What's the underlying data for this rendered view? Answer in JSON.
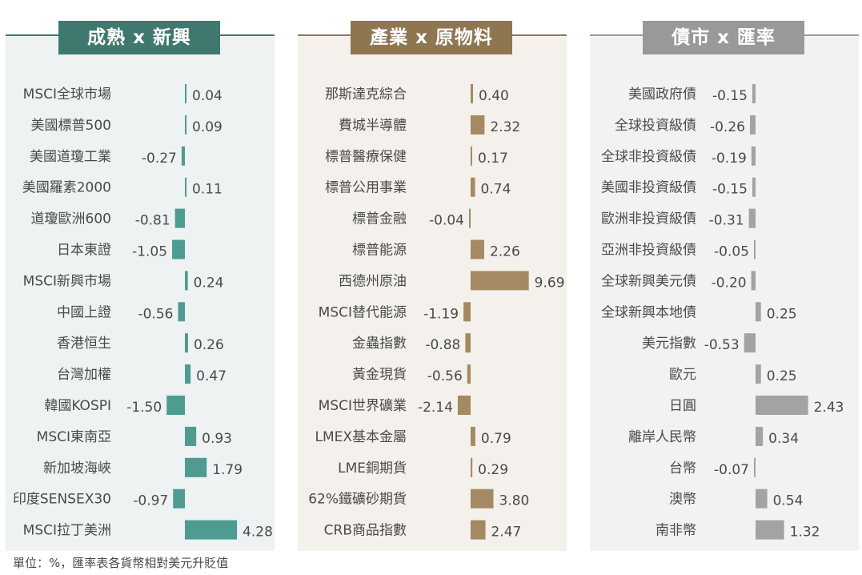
{
  "footnote": "單位：%，匯率表各貨幣相對美元升貶值",
  "chart_data": [
    {
      "type": "bar",
      "title": "成熟 x 新興",
      "orientation": "horizontal",
      "bar_color": "#4d9b91",
      "title_color": "#3f786f",
      "panel_color": "#eef2f2",
      "categories": [
        "MSCI全球市場",
        "美國標普500",
        "美國道瓊工業",
        "美國羅素2000",
        "道瓊歐洲600",
        "日本東證",
        "MSCI新興市場",
        "中國上證",
        "香港恒生",
        "台灣加權",
        "韓國KOSPI",
        "MSCI東南亞",
        "新加坡海峽",
        "印度SENSEX30",
        "MSCI拉丁美洲"
      ],
      "values": [
        0.04,
        0.09,
        -0.27,
        0.11,
        -0.81,
        -1.05,
        0.24,
        -0.56,
        0.26,
        0.47,
        -1.5,
        0.93,
        1.79,
        -0.97,
        4.28
      ],
      "value_labels": [
        "0.04",
        "0.09",
        "-0.27",
        "0.11",
        "-0.81",
        "-1.05",
        "0.24",
        "-0.56",
        "0.26",
        "0.47",
        "-1.50",
        "0.93",
        "1.79",
        "-0.97",
        "4.28"
      ]
    },
    {
      "type": "bar",
      "title": "產業 x 原物料",
      "orientation": "horizontal",
      "bar_color": "#a38a62",
      "title_color": "#8e7650",
      "panel_color": "#f4f1ec",
      "categories": [
        "那斯達克綜合",
        "費城半導體",
        "標普醫療保健",
        "標普公用事業",
        "標普金融",
        "標普能源",
        "西德州原油",
        "MSCI替代能源",
        "金蟲指數",
        "黃金現貨",
        "MSCI世界礦業",
        "LMEX基本金屬",
        "LME銅期貨",
        "62%鐵礦砂期貨",
        "CRB商品指數"
      ],
      "values": [
        0.4,
        2.32,
        0.17,
        0.74,
        -0.04,
        2.26,
        9.69,
        -1.19,
        -0.88,
        -0.56,
        -2.14,
        0.79,
        0.29,
        3.8,
        2.47
      ],
      "value_labels": [
        "0.40",
        "2.32",
        "0.17",
        "0.74",
        "-0.04",
        "2.26",
        "9.69",
        "-1.19",
        "-0.88",
        "-0.56",
        "-2.14",
        "0.79",
        "0.29",
        "3.80",
        "2.47"
      ]
    },
    {
      "type": "bar",
      "title": "債市 x 匯率",
      "orientation": "horizontal",
      "bar_color": "#a3a3a3",
      "title_color": "#999999",
      "panel_color": "#f2f2f2",
      "categories": [
        "美國政府債",
        "全球投資級債",
        "全球非投資級債",
        "美國非投資級債",
        "歐洲非投資級債",
        "亞洲非投資級債",
        "全球新興美元債",
        "全球新興本地債",
        "美元指數",
        "歐元",
        "日圓",
        "離岸人民幣",
        "台幣",
        "澳幣",
        "南非幣"
      ],
      "values": [
        -0.15,
        -0.26,
        -0.19,
        -0.15,
        -0.31,
        -0.05,
        -0.2,
        0.25,
        -0.53,
        0.25,
        2.43,
        0.34,
        -0.07,
        0.54,
        1.32
      ],
      "value_labels": [
        "-0.15",
        "-0.26",
        "-0.19",
        "-0.15",
        "-0.31",
        "-0.05",
        "-0.20",
        "0.25",
        "-0.53",
        "0.25",
        "2.43",
        "0.34",
        "-0.07",
        "0.54",
        "1.32"
      ]
    }
  ]
}
